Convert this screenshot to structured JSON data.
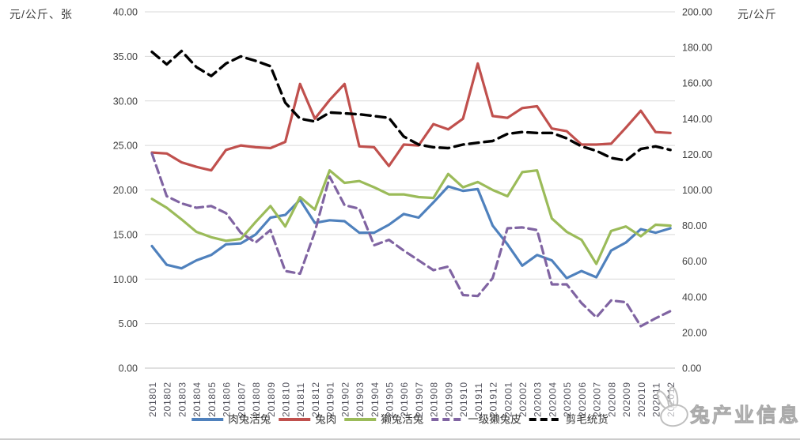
{
  "axis_left_unit": "元/公斤、张",
  "axis_right_unit": "元/公斤",
  "watermark": "兔产业信息",
  "colors": {
    "grid": "#d9d9d9",
    "grid_bottom": "#c0c0c0",
    "tick_text": "#404040",
    "xlabel_text": "#54545e",
    "legend_text": "#333333",
    "watermark_gray": "#bfbfbf"
  },
  "chart_data": {
    "type": "line",
    "x": [
      "201801",
      "201802",
      "201803",
      "201804",
      "201805",
      "201806",
      "201807",
      "201808",
      "201809",
      "201810",
      "201811",
      "201812",
      "201901",
      "201902",
      "201903",
      "201904",
      "201905",
      "201906",
      "201907",
      "201908",
      "201909",
      "201910",
      "201911",
      "201912",
      "202001",
      "202002",
      "202003",
      "202004",
      "202005",
      "202006",
      "202007",
      "202008",
      "202009",
      "202010",
      "202011",
      "202012"
    ],
    "y_left": {
      "min": 0,
      "max": 40,
      "step": 5,
      "tick_labels": [
        "0.00",
        "5.00",
        "10.00",
        "15.00",
        "20.00",
        "25.00",
        "30.00",
        "35.00",
        "40.00"
      ]
    },
    "y_right": {
      "min": 0,
      "max": 200,
      "step": 20,
      "tick_labels": [
        "0.00",
        "20.00",
        "40.00",
        "60.00",
        "80.00",
        "100.00",
        "120.00",
        "140.00",
        "160.00",
        "180.00",
        "200.00"
      ]
    },
    "grid": true,
    "legend_position": "bottom",
    "series": [
      {
        "name": "肉兔活兔",
        "color": "#4F81BD",
        "dash": "solid",
        "axis": "left",
        "values": [
          13.7,
          11.6,
          11.2,
          12.1,
          12.7,
          13.9,
          14.0,
          15.0,
          16.9,
          17.2,
          18.9,
          16.3,
          16.6,
          16.5,
          15.2,
          15.2,
          16.1,
          17.3,
          16.9,
          18.6,
          20.4,
          19.9,
          20.1,
          16.0,
          13.9,
          11.5,
          12.7,
          12.1,
          10.1,
          10.9,
          10.2,
          13.2,
          14.1,
          15.6,
          15.2,
          15.7
        ]
      },
      {
        "name": "兔肉",
        "color": "#C0504D",
        "dash": "solid",
        "axis": "left",
        "values": [
          24.2,
          24.1,
          23.1,
          22.6,
          22.2,
          24.5,
          25.0,
          24.8,
          24.7,
          25.4,
          31.9,
          28.0,
          30.1,
          31.9,
          24.9,
          24.8,
          22.7,
          25.1,
          25.0,
          27.4,
          26.8,
          28.0,
          34.2,
          28.3,
          28.1,
          29.2,
          29.4,
          26.9,
          26.6,
          25.1,
          25.1,
          25.2,
          27.0,
          28.9,
          26.5,
          26.4
        ]
      },
      {
        "name": "獭兔活兔",
        "color": "#9BBB59",
        "dash": "solid",
        "axis": "left",
        "values": [
          19.0,
          18.0,
          16.7,
          15.3,
          14.7,
          14.3,
          14.5,
          16.4,
          18.2,
          15.9,
          19.2,
          17.8,
          22.2,
          20.8,
          21.0,
          20.3,
          19.5,
          19.5,
          19.2,
          19.1,
          21.8,
          20.3,
          20.9,
          20.0,
          19.3,
          22.0,
          22.2,
          16.8,
          15.3,
          14.4,
          11.7,
          15.4,
          15.9,
          14.8,
          16.1,
          16.0
        ]
      },
      {
        "name": "一级獭兔皮",
        "color": "#8064A2",
        "dash": "dashed",
        "axis": "left",
        "values": [
          24.1,
          19.3,
          18.5,
          18.0,
          18.2,
          17.4,
          15.2,
          14.1,
          15.5,
          10.9,
          10.6,
          15.3,
          21.5,
          18.3,
          17.9,
          13.8,
          14.4,
          13.2,
          12.1,
          11.0,
          11.4,
          8.2,
          8.1,
          10.1,
          15.7,
          15.8,
          15.5,
          9.4,
          9.4,
          7.3,
          5.7,
          7.6,
          7.4,
          4.7,
          5.6,
          6.4
        ]
      },
      {
        "name": "剪毛统货",
        "color": "#000000",
        "dash": "dashed",
        "axis": "right",
        "values": [
          177.5,
          170.5,
          178.0,
          169.0,
          164.0,
          171.0,
          175.0,
          172.5,
          169.5,
          149.0,
          140.0,
          138.5,
          143.5,
          143.0,
          142.5,
          141.5,
          140.5,
          130.0,
          125.5,
          124.0,
          123.5,
          125.5,
          126.5,
          127.5,
          131.5,
          132.5,
          132.0,
          132.0,
          129.0,
          124.5,
          122.0,
          118.0,
          116.5,
          123.0,
          124.5,
          122.5
        ]
      }
    ]
  },
  "legend": {
    "items": [
      "肉兔活兔",
      "兔肉",
      "獭兔活兔",
      "一级獭兔皮",
      "剪毛统货"
    ]
  }
}
